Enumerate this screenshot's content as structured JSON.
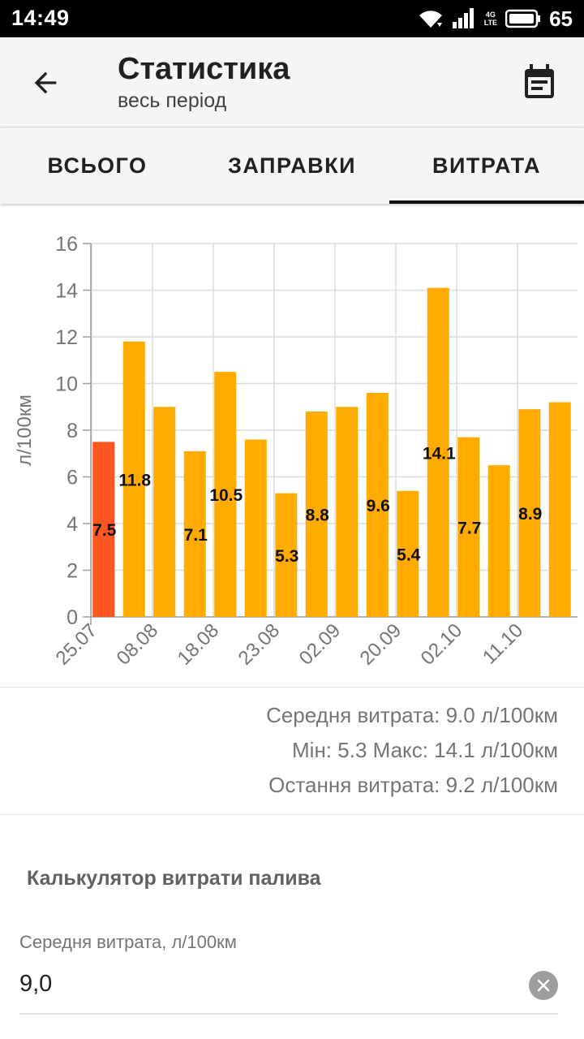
{
  "status_bar": {
    "time": "14:49",
    "network_top": "4G",
    "network_bottom": "LTE",
    "battery": "65",
    "icons": [
      "wifi-icon",
      "signal-icon",
      "battery-icon"
    ]
  },
  "app_bar": {
    "title": "Статистика",
    "subtitle": "весь період",
    "back_icon": "arrow-left-icon",
    "calendar_icon": "calendar-icon"
  },
  "tabs": [
    {
      "label": "ВСЬОГО",
      "active": false
    },
    {
      "label": "ЗАПРАВКИ",
      "active": false
    },
    {
      "label": "ВИТРАТА",
      "active": true
    }
  ],
  "chart_data": {
    "type": "bar",
    "ylabel": "л/100км",
    "ylim": [
      0,
      16
    ],
    "yticks": [
      0,
      2,
      4,
      6,
      8,
      10,
      12,
      14,
      16
    ],
    "xtick_labels": [
      "25.07",
      "08.08",
      "18.08",
      "23.08",
      "02.09",
      "20.09",
      "02.10",
      "11.10"
    ],
    "values": [
      7.5,
      11.8,
      9.0,
      7.1,
      10.5,
      7.6,
      5.3,
      8.8,
      9.0,
      9.6,
      5.4,
      14.1,
      7.7,
      6.5,
      8.9,
      9.2
    ],
    "data_labels": [
      "7.5",
      "11.8",
      "",
      "7.1",
      "10.5",
      "",
      "5.3",
      "8.8",
      "",
      "9.6",
      "5.4",
      "14.1",
      "7.7",
      "",
      "8.9",
      ""
    ],
    "grid": true,
    "colors": {
      "highlight": "#ff5722",
      "bar": "#ffab00"
    },
    "highlight_index": 0
  },
  "summary": {
    "avg": "Середня витрата: 9.0 л/100км",
    "minmax": "Мін: 5.3 Макс: 14.1 л/100км",
    "last": "Остання витрата: 9.2 л/100км"
  },
  "calculator": {
    "title": "Калькулятор витрати палива",
    "avg_label": "Середня витрата, л/100км",
    "avg_value": "9,0",
    "clear_icon": "clear-icon"
  }
}
